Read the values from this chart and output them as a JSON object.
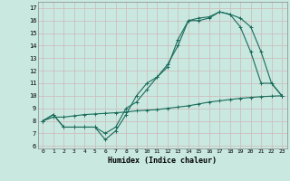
{
  "xlabel": "Humidex (Indice chaleur)",
  "ylabel": "",
  "bg_color": "#c8e8e0",
  "grid_color": "#b0d0c8",
  "line_color": "#1a6b5a",
  "xlim": [
    -0.5,
    23.5
  ],
  "ylim": [
    5.8,
    17.5
  ],
  "xticks": [
    0,
    1,
    2,
    3,
    4,
    5,
    6,
    7,
    8,
    9,
    10,
    11,
    12,
    13,
    14,
    15,
    16,
    17,
    18,
    19,
    20,
    21,
    22,
    23
  ],
  "yticks": [
    6,
    7,
    8,
    9,
    10,
    11,
    12,
    13,
    14,
    15,
    16,
    17
  ],
  "line1_x": [
    0,
    1,
    2,
    3,
    4,
    5,
    6,
    7,
    8,
    9,
    10,
    11,
    12,
    13,
    14,
    15,
    16,
    17,
    18,
    19,
    20,
    21,
    22,
    23
  ],
  "line1_y": [
    8.0,
    8.5,
    7.5,
    7.5,
    7.5,
    7.5,
    7.0,
    7.5,
    9.0,
    9.5,
    10.5,
    11.5,
    12.5,
    14.0,
    16.0,
    16.0,
    16.2,
    16.7,
    16.5,
    16.2,
    15.5,
    13.5,
    11.0,
    10.0
  ],
  "line2_x": [
    0,
    1,
    2,
    3,
    4,
    5,
    6,
    7,
    8,
    9,
    10,
    11,
    12,
    13,
    14,
    15,
    16,
    17,
    18,
    19,
    20,
    21,
    22,
    23
  ],
  "line2_y": [
    8.0,
    8.5,
    7.5,
    7.5,
    7.5,
    7.5,
    6.5,
    7.2,
    8.5,
    10.0,
    11.0,
    11.5,
    12.3,
    14.5,
    16.0,
    16.2,
    16.3,
    16.7,
    16.5,
    15.5,
    13.5,
    11.0,
    11.0,
    10.0
  ],
  "line3_x": [
    0,
    1,
    2,
    3,
    4,
    5,
    6,
    7,
    8,
    9,
    10,
    11,
    12,
    13,
    14,
    15,
    16,
    17,
    18,
    19,
    20,
    21,
    22,
    23
  ],
  "line3_y": [
    8.0,
    8.3,
    8.3,
    8.4,
    8.5,
    8.55,
    8.6,
    8.65,
    8.7,
    8.8,
    8.85,
    8.9,
    9.0,
    9.1,
    9.2,
    9.35,
    9.5,
    9.6,
    9.7,
    9.8,
    9.87,
    9.93,
    9.97,
    10.0
  ]
}
